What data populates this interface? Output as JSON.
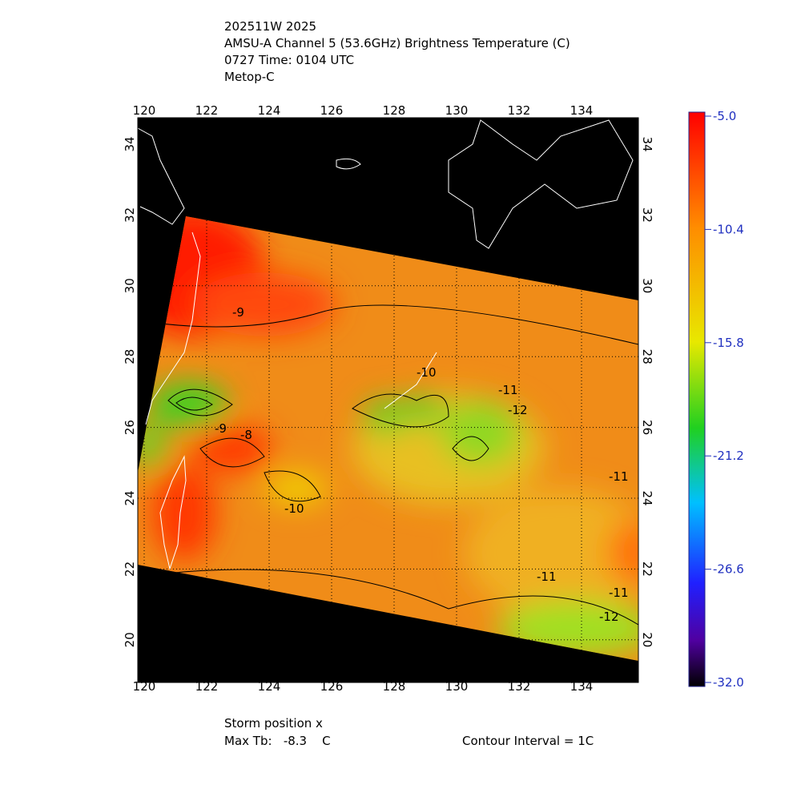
{
  "header": {
    "lines": [
      "202511W 2025",
      "AMSU-A Channel 5 (53.6GHz) Brightness Temperature (C)",
      "0727 Time: 0104 UTC",
      "Metop-C"
    ]
  },
  "map": {
    "lon_ticks": [
      120,
      122,
      124,
      126,
      128,
      130,
      132,
      134
    ],
    "lat_ticks": [
      34,
      32,
      30,
      28,
      26,
      24,
      22,
      20
    ],
    "contour_labels": [
      "-9",
      "-9",
      "-8",
      "-10",
      "-10",
      "-11",
      "-12",
      "-11",
      "-11",
      "-11",
      "-12"
    ]
  },
  "colorbar": {
    "ticks": [
      {
        "value": -5,
        "label": "-5.0"
      },
      {
        "value": -10.4,
        "label": "-10.4"
      },
      {
        "value": -15.8,
        "label": "-15.8"
      },
      {
        "value": -21.2,
        "label": "-21.2"
      },
      {
        "value": -26.6,
        "label": "-26.6"
      },
      {
        "value": -32,
        "label": "-32.0"
      }
    ]
  },
  "footer": {
    "storm": "Storm position x",
    "max_tb": "Max Tb:   -8.3    C",
    "contour": "Contour Interval = 1C"
  }
}
